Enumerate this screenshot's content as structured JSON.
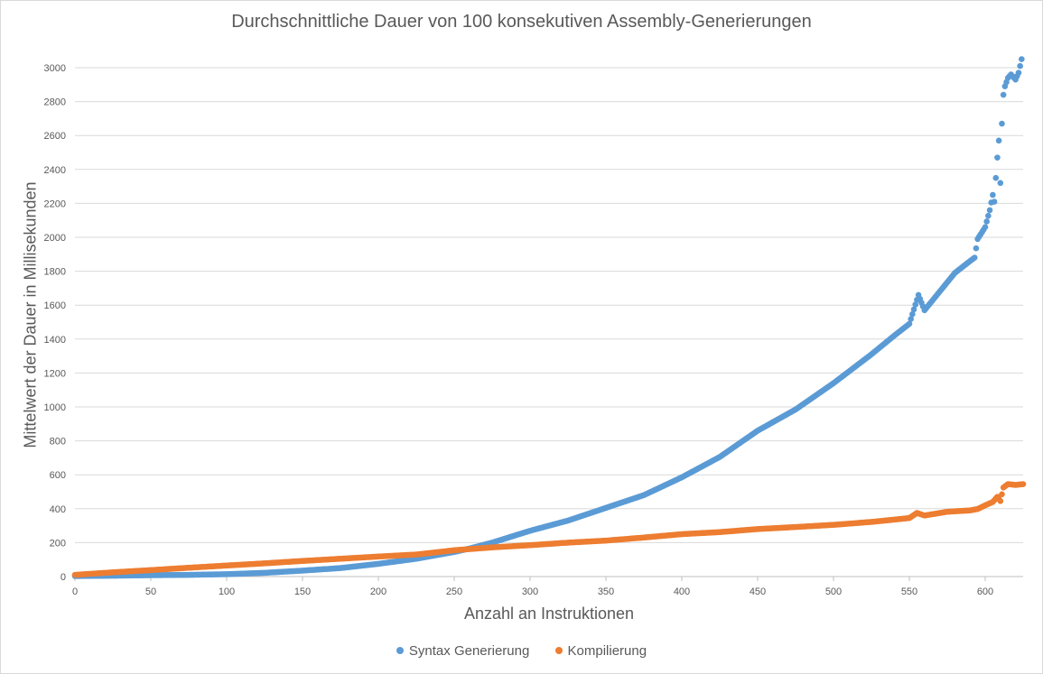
{
  "chart_data": {
    "type": "scatter",
    "title": "Durchschnittliche Dauer von 100 konsekutiven Assembly-Generierungen",
    "xlabel": "Anzahl an Instruktionen",
    "ylabel": "Mittelwert der Dauer in Millisekunden",
    "xlim": [
      0,
      625
    ],
    "ylim": [
      0,
      3000
    ],
    "x_ticks": [
      "0",
      "50",
      "100",
      "150",
      "200",
      "250",
      "300",
      "350",
      "400",
      "450",
      "500",
      "550",
      "600"
    ],
    "y_ticks": [
      "0",
      "200",
      "400",
      "600",
      "800",
      "1000",
      "1200",
      "1400",
      "1600",
      "1800",
      "2000",
      "2200",
      "2400",
      "2600",
      "2800",
      "3000"
    ],
    "grid": "horizontal",
    "legend_position": "bottom",
    "series": [
      {
        "name": "Syntax Generierung",
        "color": "#5b9bd5",
        "points": [
          [
            0,
            3
          ],
          [
            25,
            5
          ],
          [
            50,
            8
          ],
          [
            75,
            10
          ],
          [
            100,
            14
          ],
          [
            125,
            22
          ],
          [
            150,
            35
          ],
          [
            175,
            50
          ],
          [
            200,
            75
          ],
          [
            225,
            105
          ],
          [
            250,
            145
          ],
          [
            260,
            165
          ],
          [
            275,
            200
          ],
          [
            300,
            270
          ],
          [
            325,
            330
          ],
          [
            350,
            405
          ],
          [
            375,
            480
          ],
          [
            400,
            585
          ],
          [
            425,
            705
          ],
          [
            450,
            860
          ],
          [
            475,
            985
          ],
          [
            500,
            1140
          ],
          [
            525,
            1310
          ],
          [
            540,
            1420
          ],
          [
            550,
            1490
          ],
          [
            556,
            1660
          ],
          [
            560,
            1570
          ],
          [
            570,
            1680
          ],
          [
            580,
            1790
          ],
          [
            590,
            1860
          ],
          [
            593,
            1880
          ],
          [
            595,
            1990
          ],
          [
            600,
            2060
          ],
          [
            603,
            2160
          ],
          [
            605,
            2250
          ],
          [
            606,
            2210
          ],
          [
            607,
            2350
          ],
          [
            608,
            2470
          ],
          [
            609,
            2570
          ],
          [
            610,
            2320
          ],
          [
            611,
            2670
          ],
          [
            612,
            2840
          ],
          [
            613,
            2890
          ],
          [
            615,
            2940
          ],
          [
            617,
            2960
          ],
          [
            620,
            2930
          ],
          [
            622,
            2970
          ],
          [
            624,
            3050
          ]
        ]
      },
      {
        "name": "Kompilierung",
        "color": "#ed7d31",
        "points": [
          [
            0,
            10
          ],
          [
            25,
            25
          ],
          [
            50,
            38
          ],
          [
            75,
            52
          ],
          [
            100,
            65
          ],
          [
            125,
            78
          ],
          [
            150,
            92
          ],
          [
            175,
            105
          ],
          [
            200,
            118
          ],
          [
            225,
            130
          ],
          [
            250,
            155
          ],
          [
            275,
            172
          ],
          [
            300,
            185
          ],
          [
            325,
            200
          ],
          [
            350,
            212
          ],
          [
            375,
            230
          ],
          [
            400,
            250
          ],
          [
            425,
            262
          ],
          [
            450,
            280
          ],
          [
            475,
            292
          ],
          [
            500,
            305
          ],
          [
            525,
            322
          ],
          [
            550,
            345
          ],
          [
            555,
            375
          ],
          [
            560,
            360
          ],
          [
            575,
            382
          ],
          [
            590,
            390
          ],
          [
            595,
            398
          ],
          [
            600,
            420
          ],
          [
            605,
            440
          ],
          [
            608,
            470
          ],
          [
            610,
            445
          ],
          [
            612,
            525
          ],
          [
            615,
            545
          ],
          [
            620,
            540
          ],
          [
            625,
            545
          ]
        ]
      }
    ]
  }
}
